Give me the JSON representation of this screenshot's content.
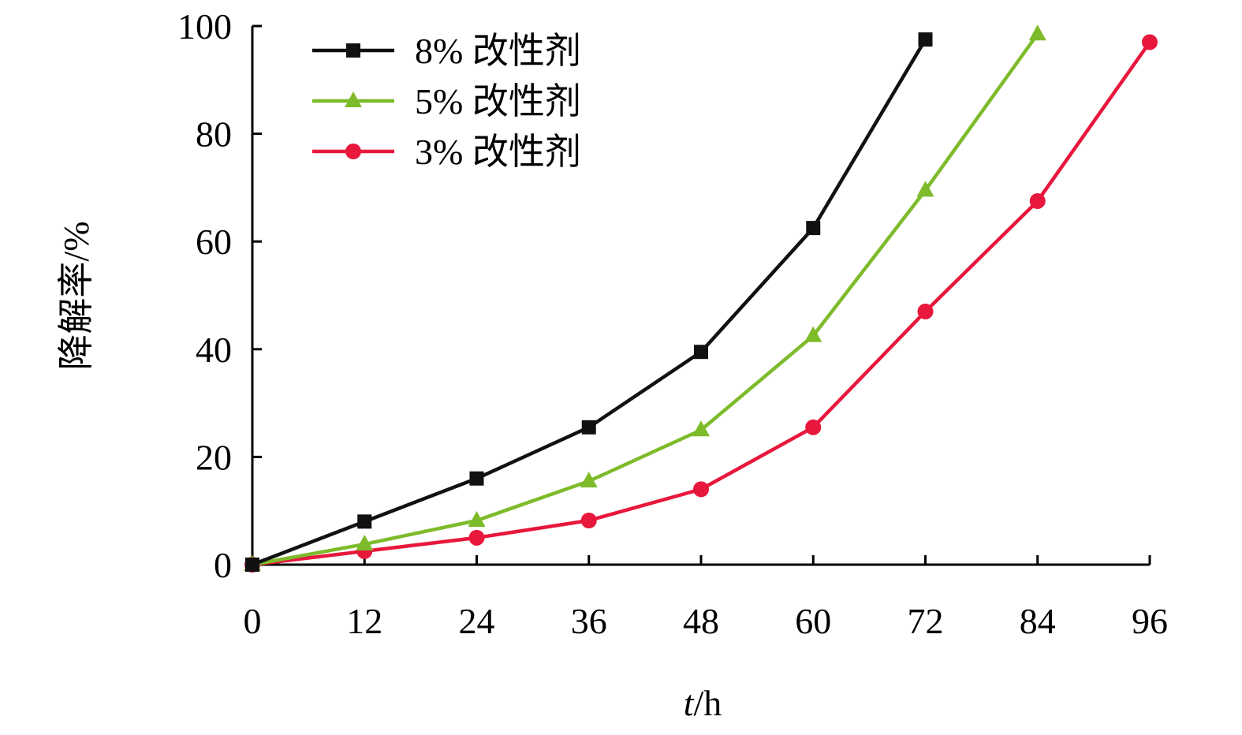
{
  "chart_data": {
    "type": "line",
    "title": "",
    "xlabel": {
      "var": "t",
      "unit": "/h"
    },
    "ylabel": "降解率/%",
    "x": [
      0,
      12,
      24,
      36,
      48,
      60,
      72,
      84,
      96
    ],
    "xlim": [
      0,
      96
    ],
    "ylim": [
      0,
      100
    ],
    "xticks": [
      "0",
      "12",
      "24",
      "36",
      "48",
      "60",
      "72",
      "84",
      "96"
    ],
    "yticks": [
      "0",
      "20",
      "40",
      "60",
      "80",
      "100"
    ],
    "grid": false,
    "legend_position": "top-left",
    "series": [
      {
        "name": "8% 改性剂",
        "color": "#111111",
        "marker": "square",
        "points": [
          [
            0,
            0
          ],
          [
            12,
            8
          ],
          [
            24,
            16
          ],
          [
            36,
            25.5
          ],
          [
            48,
            39.5
          ],
          [
            60,
            62.5
          ],
          [
            72,
            97.5
          ]
        ]
      },
      {
        "name": "5% 改性剂",
        "color": "#7dbb2a",
        "marker": "triangle",
        "points": [
          [
            0,
            0
          ],
          [
            12,
            3.8
          ],
          [
            24,
            8.2
          ],
          [
            36,
            15.5
          ],
          [
            48,
            25
          ],
          [
            60,
            42.5
          ],
          [
            72,
            69.5
          ],
          [
            84,
            98.5
          ]
        ]
      },
      {
        "name": "3% 改性剂",
        "color": "#e8173c",
        "marker": "circle",
        "points": [
          [
            0,
            0
          ],
          [
            12,
            2.5
          ],
          [
            24,
            5
          ],
          [
            36,
            8.2
          ],
          [
            48,
            14
          ],
          [
            60,
            25.5
          ],
          [
            72,
            47
          ],
          [
            84,
            67.5
          ],
          [
            96,
            97
          ]
        ]
      }
    ]
  }
}
